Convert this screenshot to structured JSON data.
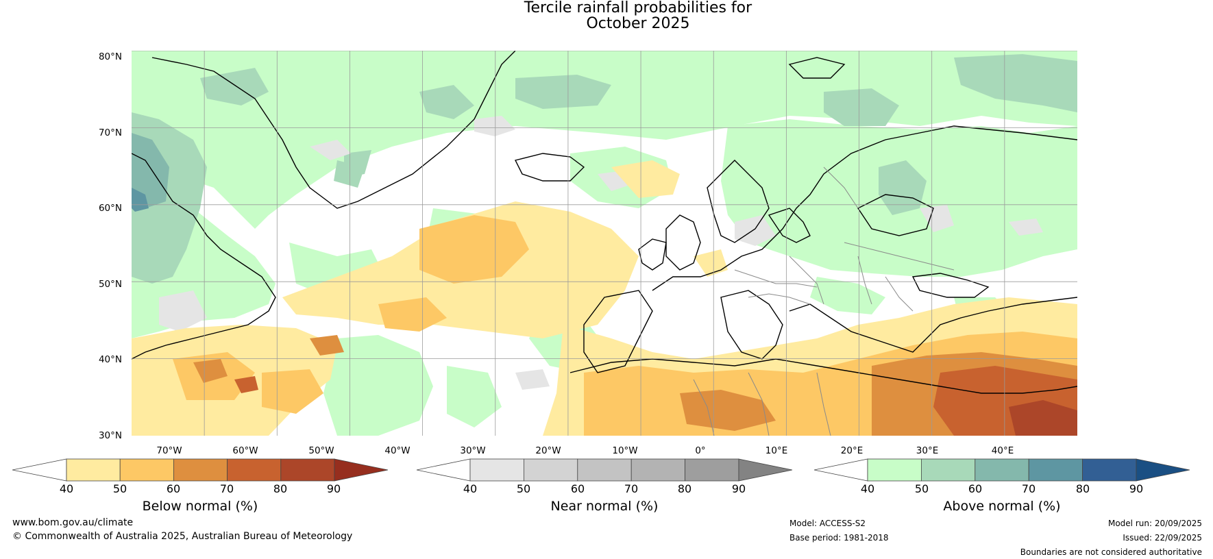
{
  "title": {
    "line1": "Tercile rainfall probabilities for",
    "line2": "October 2025"
  },
  "map": {
    "extent": {
      "lon_min": -80,
      "lon_max": 50,
      "lat_min": 30,
      "lat_max": 80
    },
    "lat_ticks": [
      "80°N",
      "70°N",
      "60°N",
      "50°N",
      "40°N",
      "30°N"
    ],
    "lon_ticks": [
      "70°W",
      "60°W",
      "50°W",
      "40°W",
      "30°W",
      "20°W",
      "10°W",
      "0°",
      "10°E",
      "20°E",
      "30°E",
      "40°E"
    ],
    "grid": true
  },
  "colorbars": [
    {
      "name": "below",
      "label": "Below normal (%)",
      "ticks": [
        "40",
        "50",
        "60",
        "70",
        "80",
        "90"
      ],
      "colors": [
        "#ffffff",
        "#ffeba0",
        "#fdc865",
        "#de8f3f",
        "#c8622f",
        "#ac4629",
        "#962e1e"
      ]
    },
    {
      "name": "near",
      "label": "Near normal (%)",
      "ticks": [
        "40",
        "50",
        "60",
        "70",
        "80",
        "90"
      ],
      "colors": [
        "#ffffff",
        "#e5e5e5",
        "#d3d3d3",
        "#c3c3c3",
        "#b3b3b3",
        "#9e9e9e",
        "#838383"
      ]
    },
    {
      "name": "above",
      "label": "Above normal (%)",
      "ticks": [
        "40",
        "50",
        "60",
        "70",
        "80",
        "90"
      ],
      "colors": [
        "#ffffff",
        "#c8fdc8",
        "#a8d9b9",
        "#84b8ac",
        "#5e96a2",
        "#325f94",
        "#1a4f83"
      ]
    }
  ],
  "footer": {
    "url": "www.bom.gov.au/climate",
    "copyright": "© Commonwealth of Australia 2025, Australian Bureau of Meteorology",
    "model": "Model: ACCESS-S2",
    "base_period": "Base period: 1981-2018",
    "model_run": "Model run: 20/09/2025",
    "issued": "Issued: 22/09/2025",
    "disclaimer": "Boundaries are not considered authoritative"
  }
}
